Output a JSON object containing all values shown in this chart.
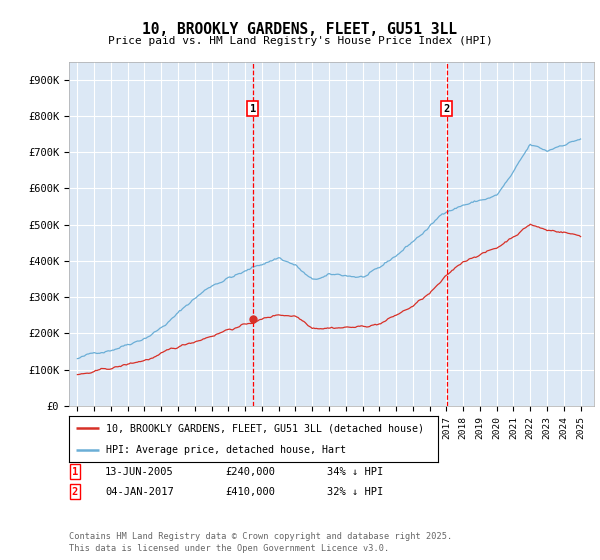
{
  "title": "10, BROOKLY GARDENS, FLEET, GU51 3LL",
  "subtitle": "Price paid vs. HM Land Registry's House Price Index (HPI)",
  "background_color": "#ffffff",
  "plot_bg_color": "#dce8f5",
  "grid_color": "#ffffff",
  "hpi_color": "#6baed6",
  "price_color": "#d73027",
  "ylim": [
    0,
    950000
  ],
  "yticks": [
    0,
    100000,
    200000,
    300000,
    400000,
    500000,
    600000,
    700000,
    800000,
    900000
  ],
  "ytick_labels": [
    "£0",
    "£100K",
    "£200K",
    "£300K",
    "£400K",
    "£500K",
    "£600K",
    "£700K",
    "£800K",
    "£900K"
  ],
  "marker1_x": 2005.45,
  "marker1_y": 240000,
  "marker2_x": 2017.02,
  "marker2_y": 410000,
  "marker1_date": "13-JUN-2005",
  "marker1_price": "£240,000",
  "marker1_note": "34% ↓ HPI",
  "marker2_date": "04-JAN-2017",
  "marker2_price": "£410,000",
  "marker2_note": "32% ↓ HPI",
  "legend_line1": "10, BROOKLY GARDENS, FLEET, GU51 3LL (detached house)",
  "legend_line2": "HPI: Average price, detached house, Hart",
  "footer": "Contains HM Land Registry data © Crown copyright and database right 2025.\nThis data is licensed under the Open Government Licence v3.0.",
  "xlim_start": 1994.5,
  "xlim_end": 2025.8,
  "hpi_xknots": [
    1995,
    1996,
    1997,
    1998,
    1999,
    2000,
    2001,
    2002,
    2003,
    2004,
    2005,
    2006,
    2007,
    2008,
    2009,
    2010,
    2011,
    2012,
    2013,
    2014,
    2015,
    2016,
    2017,
    2018,
    2019,
    2020,
    2021,
    2022,
    2023,
    2024,
    2025
  ],
  "hpi_yknots": [
    130000,
    142000,
    158000,
    178000,
    200000,
    230000,
    268000,
    310000,
    345000,
    370000,
    385000,
    405000,
    425000,
    405000,
    360000,
    370000,
    368000,
    365000,
    380000,
    415000,
    455000,
    495000,
    540000,
    560000,
    572000,
    585000,
    645000,
    715000,
    695000,
    718000,
    735000
  ],
  "price_xknots": [
    1995,
    1996,
    1997,
    1998,
    1999,
    2000,
    2001,
    2002,
    2003,
    2004,
    2005,
    2006,
    2007,
    2008,
    2009,
    2010,
    2011,
    2012,
    2013,
    2014,
    2015,
    2016,
    2017,
    2018,
    2019,
    2020,
    2021,
    2022,
    2023,
    2024,
    2025
  ],
  "price_yknots": [
    85000,
    90000,
    98000,
    108000,
    120000,
    135000,
    150000,
    168000,
    188000,
    208000,
    220000,
    235000,
    248000,
    248000,
    220000,
    225000,
    228000,
    228000,
    238000,
    260000,
    285000,
    318000,
    360000,
    400000,
    425000,
    440000,
    475000,
    510000,
    492000,
    490000,
    478000
  ]
}
